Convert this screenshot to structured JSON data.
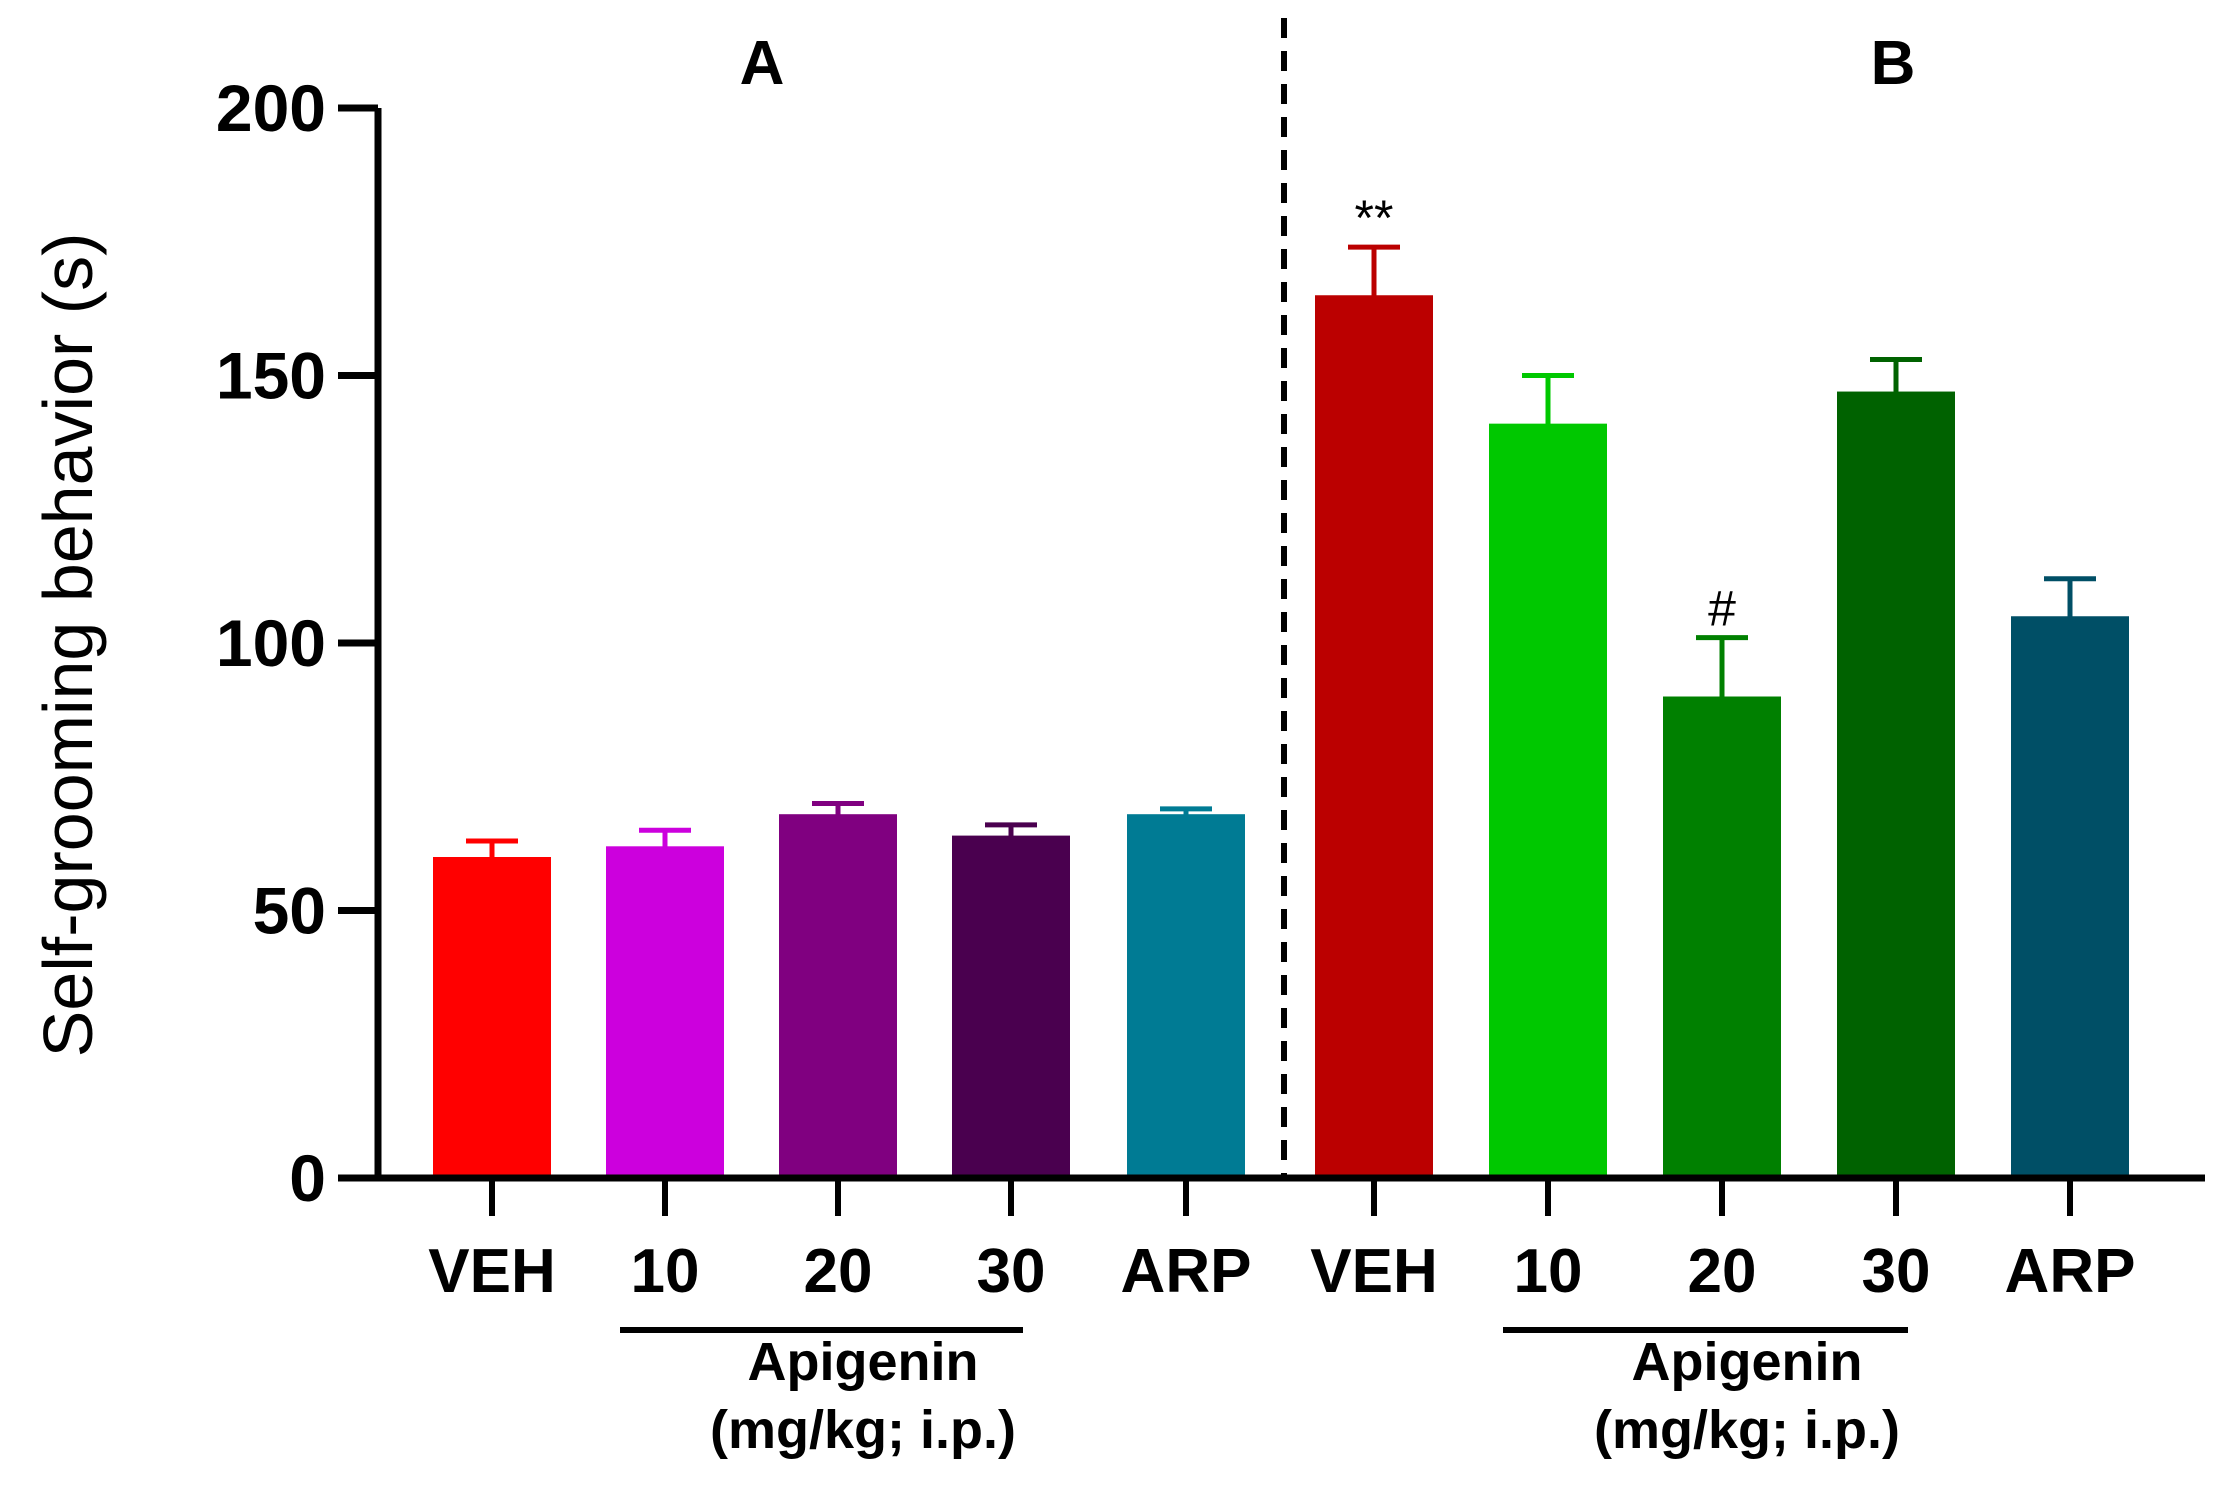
{
  "chart_data": {
    "type": "bar",
    "ylabel": "Self-grooming behavior (s)",
    "ylim": [
      0,
      200
    ],
    "yticks": [
      0,
      50,
      100,
      150,
      200
    ],
    "error_bars": "mean + SEM",
    "panels": [
      {
        "label": "A",
        "categories": [
          "VEH",
          "10",
          "20",
          "30",
          "ARP"
        ],
        "values": [
          60,
          62,
          68,
          64,
          68
        ],
        "errors": [
          3,
          3,
          2,
          2,
          1
        ],
        "colors": [
          "#ff0000",
          "#cc00dd",
          "#800080",
          "#4a004f",
          "#007b94"
        ],
        "annotations": [
          "",
          "",
          "",
          "",
          ""
        ],
        "group": {
          "line1": "Apigenin",
          "line2": "(mg/kg; i.p.)",
          "spans": [
            "10",
            "30"
          ]
        }
      },
      {
        "label": "B",
        "categories": [
          "VEH",
          "10",
          "20",
          "30",
          "ARP"
        ],
        "values": [
          165,
          141,
          90,
          147,
          105
        ],
        "errors": [
          9,
          9,
          11,
          6,
          7
        ],
        "colors": [
          "#bb0000",
          "#00c800",
          "#008000",
          "#006200",
          "#004f66"
        ],
        "annotations": [
          "**",
          "",
          "#",
          "",
          ""
        ],
        "group": {
          "line1": "Apigenin",
          "line2": "(mg/kg; i.p.)",
          "spans": [
            "10",
            "30"
          ]
        }
      }
    ]
  }
}
